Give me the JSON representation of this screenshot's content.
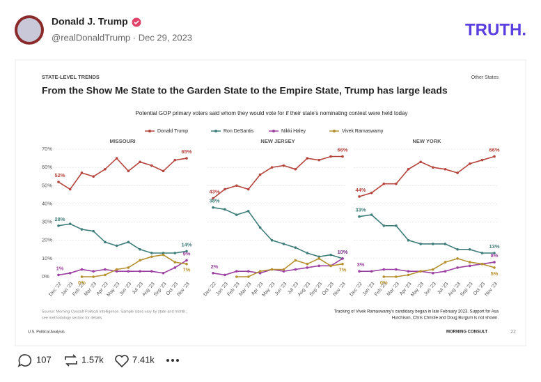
{
  "post": {
    "author": "Donald J. Trump",
    "handle": "@realDonaldTrump · Dec 29, 2023",
    "brand": "TRUTH.",
    "replies": 107,
    "retruths": "1.57k",
    "likes": "7.41k"
  },
  "figure": {
    "kicker": "STATE-LEVEL TRENDS",
    "corner": "Other States",
    "title": "From the Show Me State to the Garden State to the Empire State, Trump has large leads",
    "subtitle": "Potential GOP primary voters said whom they would vote for if their state's nominating contest were held today",
    "source": [
      "Source: Morning Consult Political Intelligence. Sample sizes vary by state and month;",
      "see methodology section for details."
    ],
    "note": [
      "Tracking of Vivek Ramaswamy's candidacy began in late February 2023. Support for Asa",
      "Hutchison, Chris Christie and Doug Burgum is not shown."
    ],
    "footer": "U.S. Political Analysis",
    "logo": "MORNING CONSULT",
    "page": 22
  },
  "chart_data": [
    {
      "type": "line",
      "title": "MISSOURI",
      "categories": [
        "Dec '22",
        "Jan '23",
        "Feb '23",
        "Mar '23",
        "Apr '23",
        "May '23",
        "Jun '23",
        "Jul '23",
        "Aug '23",
        "Sep '23",
        "Oct '23",
        "Nov '23"
      ],
      "ylim": [
        0,
        70
      ],
      "yticks": [
        {
          "value": 0,
          "label": "0%"
        },
        {
          "value": 10,
          "label": "10%"
        },
        {
          "value": 20,
          "label": "20%"
        },
        {
          "value": 30,
          "label": "30%"
        },
        {
          "value": 40,
          "label": "40%"
        },
        {
          "value": 50,
          "label": "50%"
        },
        {
          "value": 60,
          "label": "60%"
        },
        {
          "value": 70,
          "label": "70%"
        }
      ],
      "series": [
        {
          "name": "Donald Trump",
          "color": "#b5443c",
          "values": [
            52,
            48,
            57,
            55,
            59,
            65,
            58,
            63,
            61,
            58,
            64,
            65
          ],
          "value_labels": [
            "52%",
            null,
            null,
            null,
            null,
            null,
            null,
            null,
            null,
            null,
            null,
            "65%"
          ]
        },
        {
          "name": "Ron DeSantis",
          "color": "#3f7d7a",
          "values": [
            28,
            29,
            26,
            25,
            19,
            17,
            19,
            15,
            13,
            13,
            13,
            14
          ],
          "value_labels": [
            "28%",
            null,
            null,
            null,
            null,
            null,
            null,
            null,
            null,
            null,
            null,
            "14%"
          ]
        },
        {
          "name": "Nikki Haley",
          "color": "#9b3fa0",
          "values": [
            1,
            2,
            4,
            3,
            4,
            3,
            3,
            3,
            3,
            2,
            5,
            9
          ],
          "value_labels": [
            "1%",
            null,
            null,
            null,
            null,
            null,
            null,
            null,
            null,
            null,
            null,
            "9%"
          ]
        },
        {
          "name": "Vivek Ramaswamy",
          "color": "#b5902f",
          "values": [
            null,
            null,
            0,
            0,
            1,
            4,
            5,
            9,
            11,
            12,
            8,
            7
          ],
          "value_labels": [
            null,
            null,
            "0%",
            null,
            null,
            null,
            null,
            null,
            null,
            null,
            null,
            "7%"
          ]
        }
      ]
    },
    {
      "type": "line",
      "title": "NEW JERSEY",
      "categories": [
        "Dec '22",
        "Jan '23",
        "Feb '23",
        "Mar '23",
        "Apr '23",
        "May '23",
        "Jun '23",
        "Jul '23",
        "Aug '23",
        "Sep '23",
        "Oct '23",
        "Nov '23"
      ],
      "ylim": [
        0,
        70
      ],
      "yticks": [
        0,
        10,
        20,
        30,
        40,
        50,
        60,
        70
      ],
      "series": [
        {
          "color": "#b5443c",
          "values": [
            43,
            48,
            50,
            48,
            56,
            60,
            61,
            59,
            65,
            64,
            66,
            66
          ],
          "value_labels": [
            "43%",
            null,
            null,
            null,
            null,
            null,
            null,
            null,
            null,
            null,
            null,
            "66%"
          ]
        },
        {
          "color": "#3f7d7a",
          "values": [
            38,
            37,
            34,
            36,
            27,
            20,
            18,
            16,
            13,
            11,
            12,
            10
          ],
          "value_labels": [
            "38%",
            null,
            null,
            null,
            null,
            null,
            null,
            null,
            null,
            null,
            null,
            "10%"
          ]
        },
        {
          "color": "#9b3fa0",
          "values": [
            2,
            1,
            3,
            3,
            2,
            4,
            3,
            4,
            5,
            6,
            6,
            10
          ],
          "value_labels": [
            "2%",
            null,
            null,
            null,
            null,
            null,
            null,
            null,
            null,
            null,
            null,
            "10%"
          ]
        },
        {
          "color": "#b5902f",
          "values": [
            null,
            null,
            0,
            0,
            3,
            4,
            4,
            9,
            7,
            10,
            6,
            7
          ],
          "value_labels": [
            null,
            null,
            null,
            null,
            null,
            null,
            null,
            null,
            null,
            null,
            null,
            "7%"
          ]
        }
      ]
    },
    {
      "type": "line",
      "title": "NEW YORK",
      "categories": [
        "Dec '22",
        "Jan '23",
        "Feb '23",
        "Mar '23",
        "Apr '23",
        "May '23",
        "Jun '23",
        "Jul '23",
        "Aug '23",
        "Sep '23",
        "Oct '23",
        "Nov '23"
      ],
      "ylim": [
        0,
        70
      ],
      "yticks": [
        0,
        10,
        20,
        30,
        40,
        50,
        60,
        70
      ],
      "series": [
        {
          "color": "#b5443c",
          "values": [
            44,
            46,
            51,
            51,
            59,
            63,
            60,
            59,
            57,
            62,
            64,
            66
          ],
          "value_labels": [
            "44%",
            null,
            null,
            null,
            null,
            null,
            null,
            null,
            null,
            null,
            null,
            "66%"
          ]
        },
        {
          "color": "#3f7d7a",
          "values": [
            33,
            34,
            28,
            28,
            20,
            18,
            18,
            18,
            15,
            15,
            13,
            13
          ],
          "value_labels": [
            "33%",
            null,
            null,
            null,
            null,
            null,
            null,
            null,
            null,
            null,
            null,
            "13%"
          ]
        },
        {
          "color": "#9b3fa0",
          "values": [
            3,
            3,
            4,
            4,
            3,
            3,
            2,
            3,
            5,
            6,
            7,
            8
          ],
          "value_labels": [
            "3%",
            null,
            null,
            null,
            null,
            null,
            null,
            null,
            null,
            null,
            null,
            "8%"
          ]
        },
        {
          "color": "#b5902f",
          "values": [
            null,
            null,
            0,
            0,
            1,
            3,
            4,
            8,
            10,
            8,
            7,
            5
          ],
          "value_labels": [
            null,
            null,
            "0%",
            null,
            null,
            null,
            null,
            null,
            null,
            null,
            null,
            "5%"
          ]
        }
      ]
    }
  ]
}
